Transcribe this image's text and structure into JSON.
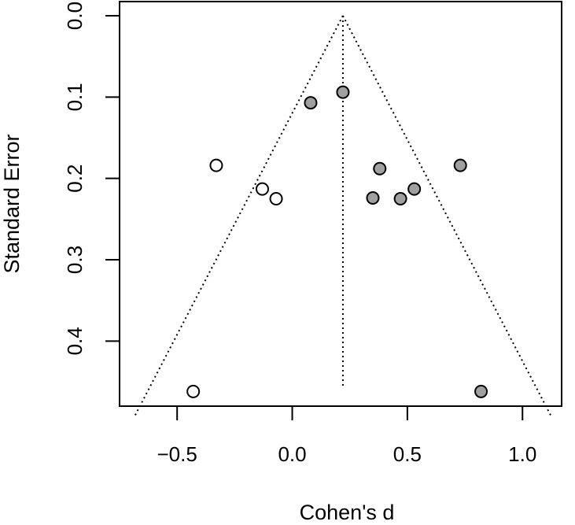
{
  "chart_data": {
    "type": "scatter",
    "title": "",
    "xlabel": "Cohen's d",
    "ylabel": "Standard Error",
    "xlim": [
      -0.75,
      1.17
    ],
    "ylim": [
      0.0,
      0.48
    ],
    "y_reversed": true,
    "grid": false,
    "x_ticks": [
      -0.5,
      0.0,
      0.5,
      1.0
    ],
    "x_tick_labels": [
      "−0.5",
      "0.0",
      "0.5",
      "1.0"
    ],
    "y_ticks": [
      0.0,
      0.1,
      0.2,
      0.3,
      0.4
    ],
    "y_tick_labels": [
      "0.0",
      "0.1",
      "0.2",
      "0.3",
      "0.4"
    ],
    "funnel": {
      "center": 0.22,
      "se_max": 0.462,
      "z": 1.96,
      "line_style": "dotted"
    },
    "series": [
      {
        "marker": "filled",
        "color": "#a0a0a0",
        "points": [
          {
            "x": 0.22,
            "y": 0.094
          },
          {
            "x": 0.08,
            "y": 0.107
          },
          {
            "x": 0.38,
            "y": 0.188
          },
          {
            "x": 0.73,
            "y": 0.184
          },
          {
            "x": 0.35,
            "y": 0.224
          },
          {
            "x": 0.47,
            "y": 0.225
          },
          {
            "x": 0.53,
            "y": 0.213
          },
          {
            "x": 0.82,
            "y": 0.462
          }
        ]
      },
      {
        "marker": "open",
        "color": "#ffffff",
        "points": [
          {
            "x": -0.33,
            "y": 0.184
          },
          {
            "x": -0.13,
            "y": 0.213
          },
          {
            "x": -0.07,
            "y": 0.225
          },
          {
            "x": -0.43,
            "y": 0.462
          }
        ]
      }
    ]
  }
}
